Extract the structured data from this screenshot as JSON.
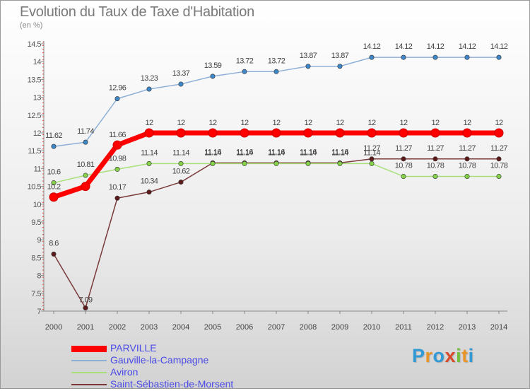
{
  "header": {
    "title": "Evolution du Taux de Taxe d'Habitation",
    "subtitle": "(en %)"
  },
  "branding": {
    "text": "Proxiti"
  },
  "chart_data": {
    "type": "line",
    "title": "Evolution du Taux de Taxe d'Habitation",
    "ylabel": "(en %)",
    "xlabel": "",
    "x": [
      "2000",
      "2001",
      "2002",
      "2003",
      "2004",
      "2005",
      "2006",
      "2007",
      "2008",
      "2009",
      "2010",
      "2011",
      "2012",
      "2013",
      "2014"
    ],
    "ylim": [
      7,
      14.5
    ],
    "yticks": [
      "7",
      "7.5",
      "8",
      "8.5",
      "9",
      "9.5",
      "10",
      "10.5",
      "11",
      "11.5",
      "12",
      "12.5",
      "13",
      "13.5",
      "14",
      "14.5"
    ],
    "grid": false,
    "legend_position": "bottom-left",
    "series": [
      {
        "name": "PARVILLE",
        "color": "#ff0000",
        "marker_color": "#ff0000",
        "values": [
          10.2,
          10.5,
          11.66,
          12,
          12,
          12,
          12,
          12,
          12,
          12,
          12,
          12,
          12,
          12,
          12
        ],
        "labels": [
          "10.2",
          "",
          "11.66",
          "12",
          "12",
          "12",
          "12",
          "12",
          "12",
          "12",
          "12",
          "12",
          "12",
          "12",
          "12"
        ]
      },
      {
        "name": "Gauville-la-Campagne",
        "color": "#8fb0d6",
        "marker_color": "#3d87c9",
        "values": [
          11.62,
          11.74,
          12.96,
          13.23,
          13.37,
          13.59,
          13.72,
          13.72,
          13.87,
          13.87,
          14.12,
          14.12,
          14.12,
          14.12,
          14.12
        ],
        "labels": [
          "11.62",
          "11.74",
          "12.96",
          "13.23",
          "13.37",
          "13.59",
          "13.72",
          "13.72",
          "13.87",
          "13.87",
          "14.12",
          "14.12",
          "14.12",
          "14.12",
          "14.12"
        ]
      },
      {
        "name": "Aviron",
        "color": "#a8e07a",
        "marker_color": "#86d24a",
        "values": [
          10.6,
          10.81,
          10.98,
          11.14,
          11.14,
          11.14,
          11.14,
          11.14,
          11.14,
          11.14,
          11.14,
          10.78,
          10.78,
          10.78,
          10.78
        ],
        "labels": [
          "10.6",
          "10.81",
          "10.98",
          "11.14",
          "11.14",
          "11.14",
          "11.14",
          "11.14",
          "11.14",
          "11.14",
          "11.14",
          "10.78",
          "10.78",
          "10.78",
          "10.78"
        ]
      },
      {
        "name": "Saint-Sébastien-de-Morsent",
        "color": "#7a3a3a",
        "marker_color": "#5c1a1a",
        "values": [
          8.6,
          7.09,
          10.17,
          10.34,
          10.62,
          11.16,
          11.16,
          11.16,
          11.16,
          11.16,
          11.27,
          11.27,
          11.27,
          11.27,
          11.27
        ],
        "labels": [
          "8.6",
          "7.09",
          "10.17",
          "10.34",
          "10.62",
          "11.16",
          "11.16",
          "11.16",
          "11.16",
          "11.16",
          "11.27",
          "11.27",
          "11.27",
          "11.27",
          "11.27"
        ]
      }
    ]
  }
}
